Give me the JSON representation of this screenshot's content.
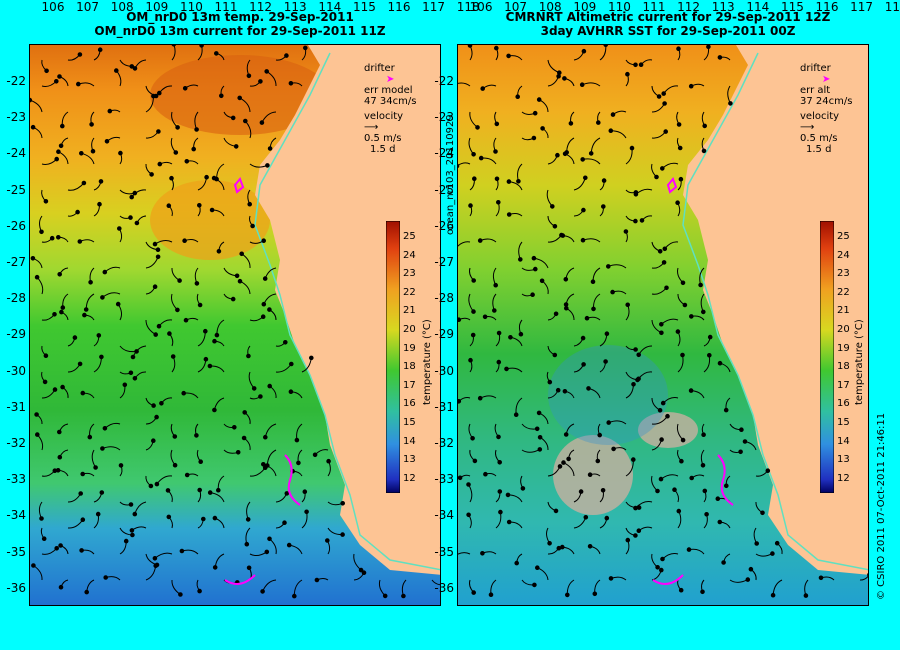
{
  "left": {
    "title_line1": "OM_nrD0 13m temp. 29-Sep-2011",
    "title_line2": "OM_nrD0 13m current for 29-Sep-2011 11Z",
    "legend": {
      "drifter": "drifter",
      "err_label": "err model",
      "err_value": "47 34cm/s",
      "velocity": "velocity",
      "speed": "0.5 m/s",
      "days": "1.5 d"
    }
  },
  "right": {
    "title_line1": "CMRNRT Altimetric current for 29-Sep-2011 12Z",
    "title_line2": "3day AVHRR SST for 29-Sep-2011 00Z",
    "legend": {
      "drifter": "drifter",
      "err_label": "err alt",
      "err_value": "37 24cm/s",
      "velocity": "velocity",
      "speed": "0.5 m/s",
      "days": "1.5 d"
    }
  },
  "y_ticks": [
    "-22",
    "-23",
    "-24",
    "-25",
    "-26",
    "-27",
    "-28",
    "-29",
    "-30",
    "-31",
    "-32",
    "-33",
    "-34",
    "-35",
    "-36"
  ],
  "x_ticks": [
    "106",
    "107",
    "108",
    "109",
    "110",
    "111",
    "112",
    "113",
    "114",
    "115",
    "116",
    "117",
    "118"
  ],
  "colorbar": {
    "label": "temperature (°C)",
    "ticks": [
      "25",
      "24",
      "23",
      "22",
      "21",
      "20",
      "19",
      "18",
      "17",
      "16",
      "15",
      "14",
      "13",
      "12"
    ]
  },
  "side_label": "ocean_nr103_20110929",
  "credit": "© CSIRO 2011   07-Oct-2011 21:46:11",
  "colors": {
    "background": "#00ffff",
    "land": "#fdc494",
    "drifter": "#ff00ff",
    "shelf_line": "#60e0c0"
  }
}
